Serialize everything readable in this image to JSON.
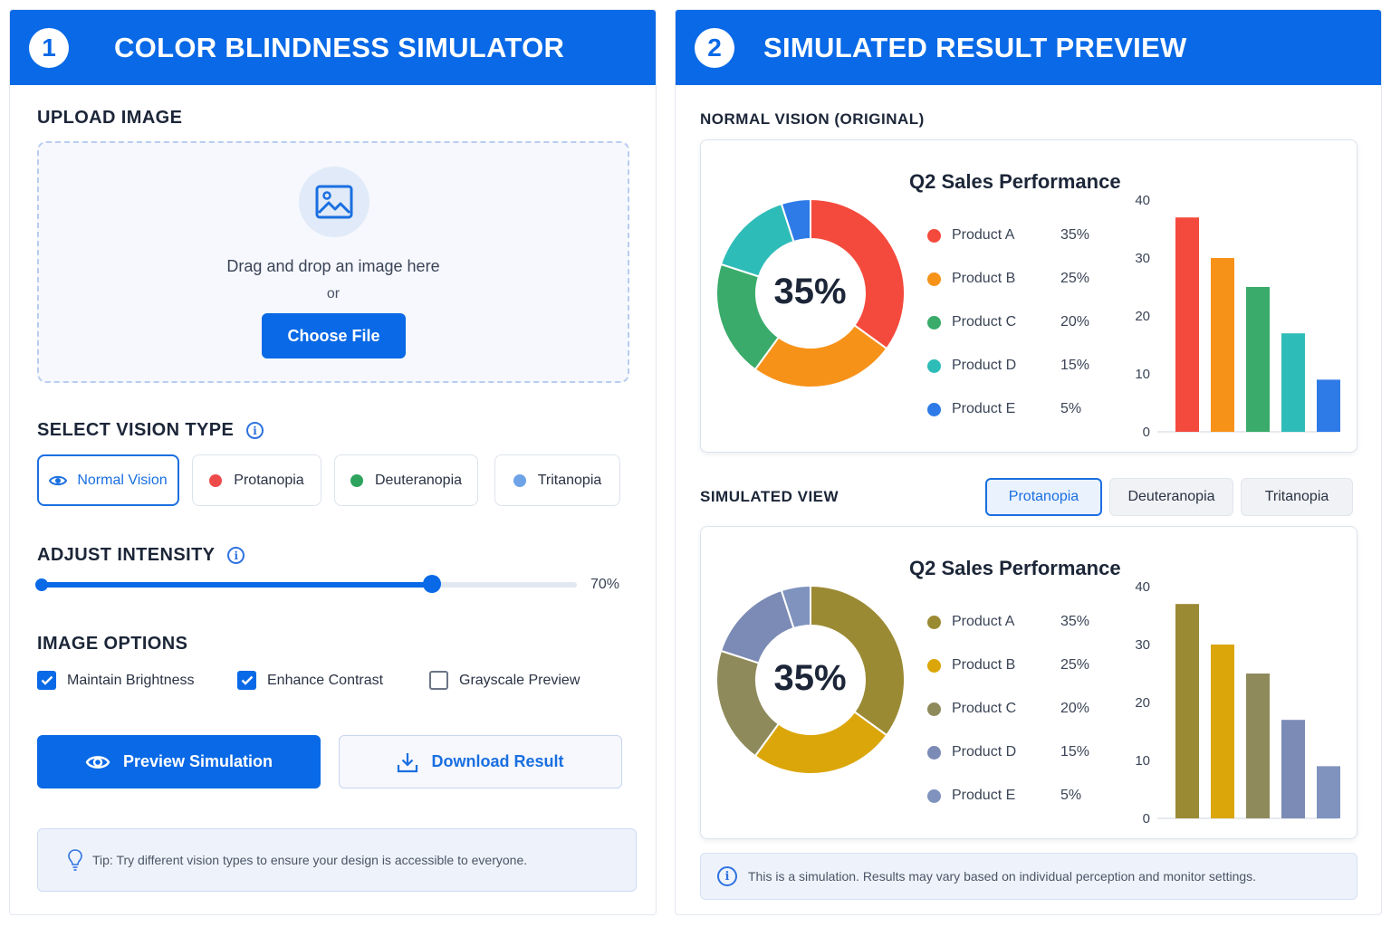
{
  "left_panel": {
    "step": "1",
    "title": "COLOR BLINDNESS SIMULATOR",
    "upload": {
      "section_title": "UPLOAD IMAGE",
      "icon": "image-icon",
      "drop_text": "Drag and drop an image here",
      "or_text": "or",
      "choose_label": "Choose File"
    },
    "vision": {
      "section_title": "SELECT VISION TYPE",
      "info_icon": "i",
      "options": [
        {
          "label": "Normal Vision",
          "color": "#1a6fe0",
          "active": true,
          "icon": "eye-icon"
        },
        {
          "label": "Protanopia",
          "color": "#ef4a4a",
          "active": false
        },
        {
          "label": "Deuteranopia",
          "color": "#2ea35d",
          "active": false
        },
        {
          "label": "Tritanopia",
          "color": "#6ea3e8",
          "active": false
        }
      ]
    },
    "intensity": {
      "section_title": "ADJUST INTENSITY",
      "info_icon": "i",
      "value": 0.7,
      "value_label": "70%"
    },
    "options": {
      "section_title": "IMAGE OPTIONS",
      "items": [
        {
          "label": "Maintain Brightness",
          "checked": true
        },
        {
          "label": "Enhance Contrast",
          "checked": true
        },
        {
          "label": "Grayscale Preview",
          "checked": false
        }
      ]
    },
    "actions": {
      "preview_label": "Preview Simulation",
      "download_label": "Download Result"
    },
    "tip": "Tip: Try different vision types to ensure your design is accessible to everyone."
  },
  "right_panel": {
    "step": "2",
    "title": "SIMULATED RESULT PREVIEW",
    "original_title": "NORMAL VISION (ORIGINAL)",
    "simulated_title": "SIMULATED VIEW",
    "sim_tabs": [
      {
        "label": "Protanopia",
        "active": true
      },
      {
        "label": "Deuteranopia",
        "active": false
      },
      {
        "label": "Tritanopia",
        "active": false
      }
    ],
    "note": "This is a simulation. Results may vary based on individual perception and monitor settings.",
    "info_icon": "i"
  },
  "chart_data": [
    {
      "type": "pie",
      "title": "Q2 Sales Performance",
      "center_label": "35%",
      "categories": [
        "Product A",
        "Product B",
        "Product C",
        "Product D",
        "Product E"
      ],
      "values": [
        35,
        25,
        20,
        15,
        5
      ],
      "value_labels": [
        "35%",
        "25%",
        "20%",
        "15%",
        "5%"
      ],
      "colors": [
        "#f44a3d",
        "#f79219",
        "#3aab6a",
        "#2ebcb8",
        "#2e7be8"
      ],
      "bar_axis": {
        "ylim": [
          0,
          40
        ],
        "ticks": [
          "0",
          "10",
          "20",
          "30",
          "40"
        ]
      }
    },
    {
      "type": "pie",
      "title": "Q2 Sales Performance",
      "center_label": "35%",
      "categories": [
        "Product A",
        "Product B",
        "Product C",
        "Product D",
        "Product E"
      ],
      "values": [
        35,
        25,
        20,
        15,
        5
      ],
      "value_labels": [
        "35%",
        "25%",
        "20%",
        "15%",
        "5%"
      ],
      "colors": [
        "#9b8a34",
        "#dba60a",
        "#8f8a5b",
        "#7b8bb5",
        "#7f93be"
      ],
      "bar_axis": {
        "ylim": [
          0,
          40
        ],
        "ticks": [
          "0",
          "10",
          "20",
          "30",
          "40"
        ]
      }
    }
  ]
}
